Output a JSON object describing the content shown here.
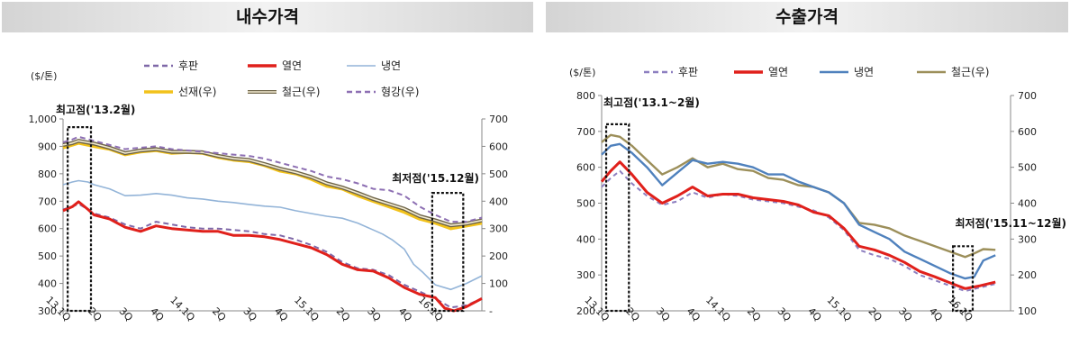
{
  "panels": {
    "left_title": "내수가격",
    "right_title": "수출가격"
  },
  "chart_data": [
    {
      "type": "line",
      "title": "내수가격",
      "ylabel": "($/톤)",
      "ylim": [
        300,
        1000
      ],
      "yticks": [
        "300",
        "400",
        "500",
        "600",
        "700",
        "800",
        "900",
        "1,000"
      ],
      "y2lim": [
        0,
        700
      ],
      "y2ticks": [
        "-",
        "100",
        "200",
        "300",
        "400",
        "500",
        "600",
        "700"
      ],
      "xlim": [
        0,
        13.5
      ],
      "x_ticks": [
        {
          "pos": 0,
          "label": "13.1Q"
        },
        {
          "pos": 1,
          "label": "2Q"
        },
        {
          "pos": 2,
          "label": "3Q"
        },
        {
          "pos": 3,
          "label": "4Q"
        },
        {
          "pos": 4,
          "label": "14.1Q"
        },
        {
          "pos": 5,
          "label": "2Q"
        },
        {
          "pos": 6,
          "label": "3Q"
        },
        {
          "pos": 7,
          "label": "4Q"
        },
        {
          "pos": 8,
          "label": "15.1Q"
        },
        {
          "pos": 9,
          "label": "2Q"
        },
        {
          "pos": 10,
          "label": "3Q"
        },
        {
          "pos": 11,
          "label": "4Q"
        },
        {
          "pos": 12,
          "label": "16.1Q"
        }
      ],
      "legend": [
        {
          "label": "후판",
          "color": "#7f68a8",
          "style": "dash"
        },
        {
          "label": "열연",
          "color": "#e0201b",
          "style": "solid-thick"
        },
        {
          "label": "냉연",
          "color": "#93b4d8",
          "style": "solid-thin"
        },
        {
          "label": "선재(우)",
          "color": "#f2c21b",
          "style": "solid-thick"
        },
        {
          "label": "철근(우)",
          "color": "#a89a6a",
          "style": "double"
        },
        {
          "label": "형강(우)",
          "color": "#8d6fb3",
          "style": "dash"
        }
      ],
      "series": [
        {
          "name": "냉연",
          "axis": "left",
          "color": "#93b4d8",
          "width": 1.6,
          "x": [
            0,
            0.3,
            0.5,
            0.8,
            1.0,
            1.5,
            2.0,
            2.5,
            3.0,
            3.5,
            4.0,
            4.5,
            5.0,
            5.5,
            6.0,
            6.5,
            7.0,
            7.5,
            8.0,
            8.5,
            9.0,
            9.5,
            10.0,
            10.3,
            10.6,
            11.0,
            11.3,
            11.6,
            12.0,
            12.5,
            13.0,
            13.5
          ],
          "y": [
            760,
            770,
            775,
            770,
            760,
            745,
            720,
            722,
            728,
            722,
            712,
            708,
            700,
            695,
            688,
            682,
            678,
            665,
            655,
            645,
            638,
            620,
            595,
            580,
            560,
            525,
            470,
            440,
            395,
            378,
            400,
            428
          ]
        },
        {
          "name": "후판",
          "axis": "left",
          "color": "#7f68a8",
          "width": 2,
          "dash": "6,4",
          "x": [
            0,
            0.3,
            0.5,
            0.8,
            1.0,
            1.5,
            2.0,
            2.5,
            3.0,
            3.5,
            4.0,
            4.5,
            5.0,
            5.5,
            6.0,
            6.5,
            7.0,
            7.5,
            8.0,
            8.5,
            9.0,
            9.5,
            10.0,
            10.5,
            11.0,
            11.5,
            12.0,
            12.5,
            13.0,
            13.5
          ],
          "y": [
            670,
            680,
            690,
            670,
            655,
            640,
            615,
            600,
            625,
            615,
            605,
            600,
            600,
            595,
            590,
            580,
            575,
            560,
            540,
            515,
            478,
            455,
            450,
            430,
            395,
            370,
            345,
            312,
            320,
            345
          ]
        },
        {
          "name": "열연",
          "axis": "left",
          "color": "#e0201b",
          "width": 3,
          "x": [
            0,
            0.3,
            0.5,
            0.8,
            1.0,
            1.5,
            2.0,
            2.5,
            3.0,
            3.5,
            4.0,
            4.5,
            5.0,
            5.5,
            6.0,
            6.5,
            7.0,
            7.5,
            8.0,
            8.5,
            9.0,
            9.5,
            10.0,
            10.5,
            11.0,
            11.5,
            12.0,
            12.3,
            12.6,
            13.0,
            13.5
          ],
          "y": [
            665,
            680,
            698,
            670,
            650,
            635,
            605,
            590,
            610,
            600,
            595,
            590,
            590,
            575,
            575,
            570,
            560,
            545,
            530,
            505,
            470,
            450,
            445,
            420,
            385,
            360,
            348,
            310,
            300,
            315,
            345
          ]
        },
        {
          "name": "선재(우)",
          "axis": "right",
          "color": "#f2c21b",
          "width": 3.5,
          "x": [
            0,
            0.3,
            0.5,
            1.0,
            1.5,
            2.0,
            2.5,
            3.0,
            3.5,
            4.0,
            4.5,
            5.0,
            5.5,
            6.0,
            6.5,
            7.0,
            7.5,
            8.0,
            8.5,
            9.0,
            9.5,
            10.0,
            10.5,
            11.0,
            11.5,
            12.0,
            12.5,
            13.0,
            13.5
          ],
          "y": [
            595,
            605,
            612,
            600,
            590,
            570,
            580,
            585,
            575,
            578,
            575,
            560,
            550,
            545,
            530,
            510,
            500,
            480,
            455,
            445,
            420,
            400,
            380,
            360,
            335,
            320,
            300,
            310,
            320
          ]
        },
        {
          "name": "철근(우)",
          "axis": "right",
          "color": "#a89a6a",
          "width": 2.2,
          "x": [
            0,
            0.3,
            0.5,
            1.0,
            1.5,
            2.0,
            2.5,
            3.0,
            3.5,
            4.0,
            4.5,
            5.0,
            5.5,
            6.0,
            6.5,
            7.0,
            7.5,
            8.0,
            8.5,
            9.0,
            9.5,
            10.0,
            10.5,
            11.0,
            11.5,
            12.0,
            12.5,
            13.0,
            13.5
          ],
          "y": [
            605,
            612,
            620,
            610,
            595,
            575,
            585,
            590,
            580,
            580,
            578,
            565,
            555,
            550,
            535,
            518,
            505,
            488,
            465,
            450,
            430,
            408,
            390,
            372,
            345,
            330,
            312,
            318,
            330
          ]
        },
        {
          "name": "형강(우)",
          "axis": "right",
          "color": "#8d6fb3",
          "width": 2,
          "dash": "6,4",
          "x": [
            0,
            0.3,
            0.5,
            1.0,
            1.5,
            2.0,
            2.5,
            3.0,
            3.5,
            4.0,
            4.5,
            5.0,
            5.5,
            6.0,
            6.5,
            7.0,
            7.5,
            8.0,
            8.5,
            9.0,
            9.5,
            10.0,
            10.5,
            11.0,
            11.5,
            12.0,
            12.5,
            13.0,
            13.5
          ],
          "y": [
            615,
            625,
            635,
            620,
            605,
            590,
            595,
            600,
            590,
            585,
            580,
            575,
            570,
            565,
            555,
            540,
            525,
            510,
            490,
            480,
            465,
            445,
            440,
            420,
            380,
            350,
            325,
            325,
            340
          ]
        }
      ],
      "annotations": [
        {
          "label": "최고점('13.2월)",
          "box_x": [
            0.15,
            0.9
          ],
          "box_y": [
            300,
            970
          ]
        },
        {
          "label": "최저점('15.12월)",
          "box_x": [
            11.9,
            12.9
          ],
          "box_y": [
            300,
            730
          ]
        }
      ]
    },
    {
      "type": "line",
      "title": "수출가격",
      "ylabel": "($/톤)",
      "ylim": [
        200,
        800
      ],
      "yticks": [
        "200",
        "300",
        "400",
        "500",
        "600",
        "700",
        "800"
      ],
      "y2lim": [
        100,
        700
      ],
      "y2ticks": [
        "100",
        "200",
        "300",
        "400",
        "500",
        "600",
        "700"
      ],
      "xlim": [
        0,
        13.5
      ],
      "x_ticks": [
        {
          "pos": 0,
          "label": "13.1Q"
        },
        {
          "pos": 1,
          "label": "2Q"
        },
        {
          "pos": 2,
          "label": "3Q"
        },
        {
          "pos": 3,
          "label": "4Q"
        },
        {
          "pos": 4,
          "label": "14.1Q"
        },
        {
          "pos": 5,
          "label": "2Q"
        },
        {
          "pos": 6,
          "label": "3Q"
        },
        {
          "pos": 7,
          "label": "4Q"
        },
        {
          "pos": 8,
          "label": "15.1Q"
        },
        {
          "pos": 9,
          "label": "2Q"
        },
        {
          "pos": 10,
          "label": "3Q"
        },
        {
          "pos": 11,
          "label": "4Q"
        },
        {
          "pos": 12,
          "label": "16.1Q"
        }
      ],
      "legend": [
        {
          "label": "후판",
          "color": "#8d7fc0",
          "style": "dash"
        },
        {
          "label": "열연",
          "color": "#e0201b",
          "style": "solid-thick"
        },
        {
          "label": "냉연",
          "color": "#4f81bd",
          "style": "solid"
        },
        {
          "label": "철근(우)",
          "color": "#9c8f5a",
          "style": "solid"
        }
      ],
      "series": [
        {
          "name": "철근(우)",
          "axis": "right",
          "color": "#9c8f5a",
          "width": 2.4,
          "x": [
            0,
            0.3,
            0.6,
            1.0,
            1.5,
            2.0,
            2.5,
            3.0,
            3.5,
            4.0,
            4.5,
            5.0,
            5.5,
            6.0,
            6.5,
            7.0,
            7.5,
            8.0,
            8.5,
            9.0,
            9.5,
            10.0,
            10.5,
            11.0,
            11.5,
            12.0,
            12.3,
            12.6,
            13.0
          ],
          "y": [
            570,
            590,
            585,
            560,
            520,
            480,
            500,
            525,
            500,
            510,
            495,
            490,
            470,
            465,
            450,
            445,
            430,
            400,
            345,
            340,
            330,
            310,
            295,
            280,
            265,
            250,
            260,
            272,
            270
          ]
        },
        {
          "name": "냉연",
          "axis": "left",
          "color": "#4f81bd",
          "width": 2.4,
          "x": [
            0,
            0.3,
            0.6,
            1.0,
            1.5,
            2.0,
            2.5,
            3.0,
            3.5,
            4.0,
            4.5,
            5.0,
            5.5,
            6.0,
            6.5,
            7.0,
            7.5,
            8.0,
            8.5,
            9.0,
            9.5,
            10.0,
            10.5,
            11.0,
            11.5,
            12.0,
            12.3,
            12.6,
            13.0
          ],
          "y": [
            635,
            660,
            665,
            640,
            600,
            550,
            585,
            620,
            610,
            615,
            610,
            600,
            580,
            580,
            560,
            545,
            530,
            500,
            440,
            420,
            400,
            365,
            345,
            325,
            305,
            290,
            295,
            340,
            355
          ]
        },
        {
          "name": "후판",
          "axis": "left",
          "color": "#8d7fc0",
          "width": 2,
          "dash": "5,4",
          "x": [
            0,
            0.3,
            0.6,
            1.0,
            1.5,
            2.0,
            2.5,
            3.0,
            3.5,
            4.0,
            4.5,
            5.0,
            5.5,
            6.0,
            6.5,
            7.0,
            7.5,
            8.0,
            8.5,
            9.0,
            9.5,
            10.0,
            10.5,
            11.0,
            11.5,
            12.0,
            12.5,
            13.0
          ],
          "y": [
            545,
            570,
            590,
            555,
            520,
            495,
            505,
            530,
            515,
            525,
            520,
            510,
            505,
            500,
            490,
            480,
            460,
            425,
            370,
            355,
            345,
            325,
            300,
            285,
            270,
            255,
            265,
            275
          ]
        },
        {
          "name": "열연",
          "axis": "left",
          "color": "#e0201b",
          "width": 3,
          "x": [
            0,
            0.3,
            0.6,
            1.0,
            1.5,
            2.0,
            2.5,
            3.0,
            3.5,
            4.0,
            4.5,
            5.0,
            5.5,
            6.0,
            6.5,
            7.0,
            7.5,
            8.0,
            8.5,
            9.0,
            9.5,
            10.0,
            10.5,
            11.0,
            11.5,
            12.0,
            12.5,
            13.0
          ],
          "y": [
            560,
            590,
            615,
            580,
            530,
            500,
            520,
            545,
            520,
            525,
            525,
            515,
            510,
            505,
            495,
            475,
            465,
            430,
            380,
            370,
            355,
            335,
            310,
            295,
            278,
            262,
            270,
            280
          ]
        }
      ],
      "annotations": [
        {
          "label": "최고점('13.1~2월)",
          "box_x": [
            0.15,
            0.9
          ],
          "box_y": [
            200,
            720
          ]
        },
        {
          "label": "최저점('15.11~12월)",
          "box_x": [
            11.6,
            12.25
          ],
          "box_y": [
            200,
            380
          ]
        }
      ]
    }
  ]
}
